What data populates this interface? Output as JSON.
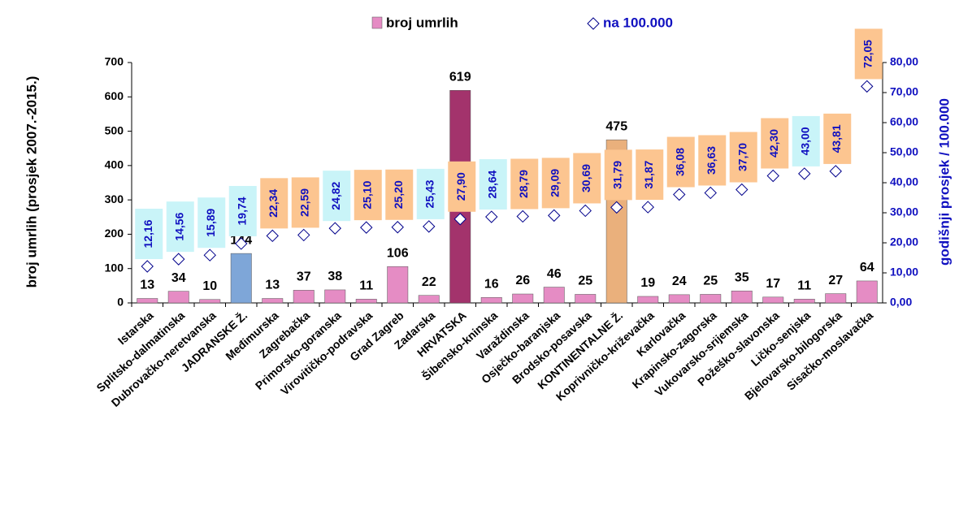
{
  "chart_data": {
    "type": "bar",
    "y_label": "broj umrlih (prosjek 2007.-2015.)",
    "y2_label": "godišnji prosjek / 100.000",
    "categories": [
      "Istarska",
      "Splitsko-dalmatinska",
      "Dubrovačko-neretvanska",
      "JADRANSKE Ž.",
      "Međimurska",
      "Zagrebačka",
      "Primorsko-goranska",
      "Virovitičko-podravska",
      "Grad Zagreb",
      "Zadarska",
      "HRVATSKA",
      "Šibensko-kninska",
      "Varaždinska",
      "Osječko-baranjska",
      "Brodsko-posavska",
      "KONTINENTALNE Ž.",
      "Koprivničko-križevačka",
      "Karlovačka",
      "Krapinsko-zagorska",
      "Vukovarsko-srijemska",
      "Požeško-slavonska",
      "Ličko-senjska",
      "Bjelovarsko-bilogorska",
      "Sisačko-moslavačka"
    ],
    "series": [
      {
        "name": "broj umrlih",
        "color": "#e58cc4",
        "colors": [
          "#e58cc4",
          "#e58cc4",
          "#e58cc4",
          "#7ea6d8",
          "#e58cc4",
          "#e58cc4",
          "#e58cc4",
          "#e58cc4",
          "#e58cc4",
          "#e58cc4",
          "#a3336c",
          "#e58cc4",
          "#e58cc4",
          "#e58cc4",
          "#e58cc4",
          "#eab07c",
          "#e58cc4",
          "#e58cc4",
          "#e58cc4",
          "#e58cc4",
          "#e58cc4",
          "#e58cc4",
          "#e58cc4",
          "#e58cc4"
        ],
        "values": [
          13,
          34,
          10,
          144,
          13,
          37,
          38,
          11,
          106,
          22,
          619,
          16,
          26,
          46,
          25,
          475,
          19,
          24,
          25,
          35,
          17,
          11,
          27,
          64
        ]
      },
      {
        "name": "na 100.000",
        "color": "#00008b",
        "axis": "y2",
        "values": [
          12.16,
          14.56,
          15.89,
          19.74,
          22.34,
          22.59,
          24.82,
          25.1,
          25.2,
          25.43,
          27.9,
          28.64,
          28.79,
          29.09,
          30.69,
          31.79,
          31.87,
          36.08,
          36.63,
          37.7,
          42.3,
          43.0,
          43.81,
          72.05
        ],
        "value_labels": [
          "12,16",
          "14,56",
          "15,89",
          "19,74",
          "22,34",
          "22,59",
          "24,82",
          "25,10",
          "25,20",
          "25,43",
          "27,90",
          "28,64",
          "28,79",
          "29,09",
          "30,69",
          "31,79",
          "31,87",
          "36,08",
          "36,63",
          "37,70",
          "42,30",
          "43,00",
          "43,81",
          "72,05"
        ],
        "label_colors": [
          "#c9f4f8",
          "#c9f4f8",
          "#c9f4f8",
          "#c9f4f8",
          "#fcc590",
          "#fcc590",
          "#c9f4f8",
          "#fcc590",
          "#fcc590",
          "#c9f4f8",
          "#fcc590",
          "#c9f4f8",
          "#fcc590",
          "#fcc590",
          "#fcc590",
          "#fcc590",
          "#fcc590",
          "#fcc590",
          "#fcc590",
          "#fcc590",
          "#fcc590",
          "#c9f4f8",
          "#fcc590",
          "#fcc590"
        ]
      }
    ],
    "ylim": [
      0,
      700
    ],
    "yticks": [
      0,
      100,
      200,
      300,
      400,
      500,
      600,
      700
    ],
    "y2lim": [
      0,
      80
    ],
    "y2ticks": [
      {
        "value": 0,
        "label": "0,00"
      },
      {
        "value": 10,
        "label": "10,00"
      },
      {
        "value": 20,
        "label": "20,00"
      },
      {
        "value": 30,
        "label": "30,00"
      },
      {
        "value": 40,
        "label": "40,00"
      },
      {
        "value": 50,
        "label": "50,00"
      },
      {
        "value": 60,
        "label": "60,00"
      },
      {
        "value": 70,
        "label": "70,00"
      },
      {
        "value": 80,
        "label": "80,00"
      }
    ],
    "legend": "top"
  }
}
